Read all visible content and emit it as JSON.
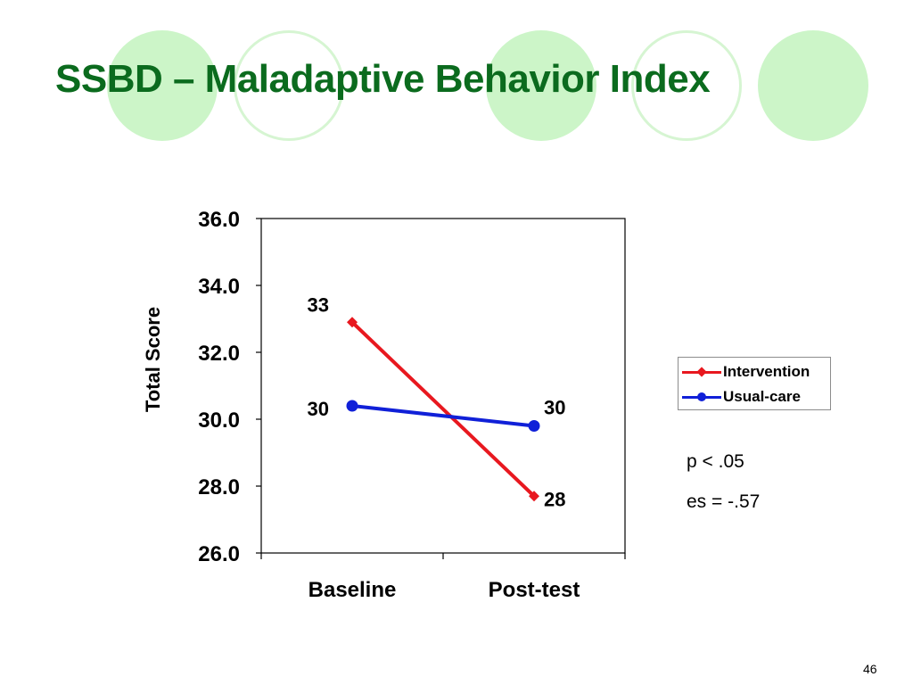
{
  "slide": {
    "title": "SSBD – Maladaptive Behavior Index",
    "page_number": "46",
    "stats": [
      "p < .05",
      "es = -.57"
    ]
  },
  "colors": {
    "title": "#0b6b1e",
    "decor_fill": "#ccf5c8",
    "decor_ring": "#d6f5d2",
    "intervention": "#e8181f",
    "usual_care": "#1020d8"
  },
  "chart_data": {
    "type": "line",
    "categories": [
      "Baseline",
      "Post-test"
    ],
    "ylabel": "Total Score",
    "ylim": [
      26,
      36
    ],
    "yticks": [
      "26.0",
      "28.0",
      "30.0",
      "32.0",
      "34.0",
      "36.0"
    ],
    "grid": false,
    "legend_position": "right",
    "series": [
      {
        "name": "Intervention",
        "values": [
          32.9,
          27.7
        ],
        "data_labels": [
          "33",
          "28"
        ],
        "color": "#e8181f",
        "marker": "diamond"
      },
      {
        "name": "Usual-care",
        "values": [
          30.4,
          29.8
        ],
        "data_labels": [
          "30",
          "30"
        ],
        "color": "#1020d8",
        "marker": "circle"
      }
    ]
  }
}
